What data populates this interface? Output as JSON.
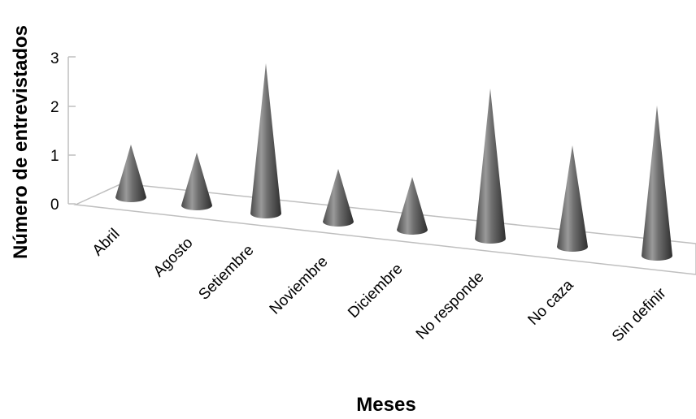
{
  "chart_data": {
    "type": "bar",
    "style": "3d-cone",
    "categories": [
      "Abril",
      "Agosto",
      "Setiembre",
      "Noviembre",
      "Diciembre",
      "No responde",
      "No caza",
      "Sin definir"
    ],
    "values": [
      1,
      1,
      3,
      1,
      1,
      3,
      2,
      3
    ],
    "xlabel": "Meses",
    "ylabel": "Número de entrevistados",
    "ylim": [
      0,
      3
    ],
    "yticks": [
      "0",
      "1",
      "2",
      "3"
    ],
    "grid": false,
    "legend": "none",
    "colors": {
      "cone_dark": "#3a3a3a",
      "cone_light": "#c8c8c8",
      "axis": "#bfbfbf"
    }
  }
}
